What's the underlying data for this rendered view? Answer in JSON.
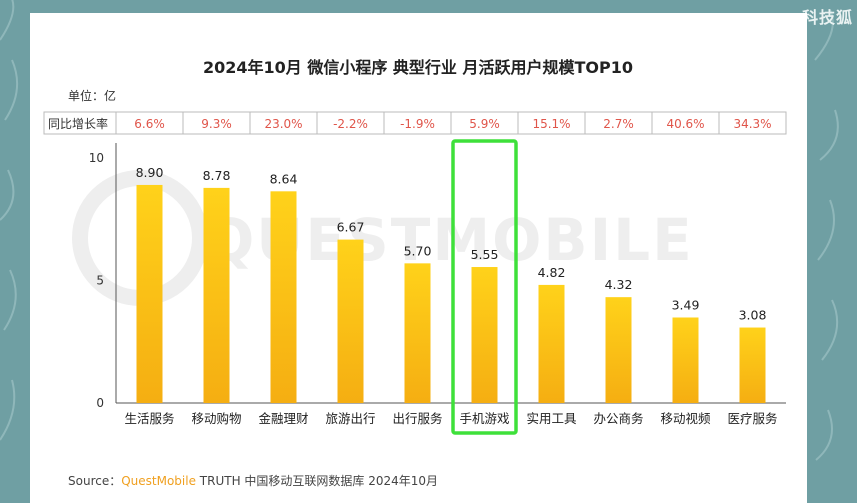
{
  "brand_mark": "科技狐",
  "chart_data": {
    "type": "bar",
    "title": "2024年10月 微信小程序 典型行业 月活跃用户规模TOP10",
    "unit_label": "单位：亿",
    "growth_header": "同比增长率",
    "categories": [
      "生活服务",
      "移动购物",
      "金融理财",
      "旅游出行",
      "出行服务",
      "手机游戏",
      "实用工具",
      "办公商务",
      "移动视频",
      "医疗服务"
    ],
    "values": [
      8.9,
      8.78,
      8.64,
      6.67,
      5.7,
      5.55,
      4.82,
      4.32,
      3.49,
      3.08
    ],
    "value_labels": [
      "8.90",
      "8.78",
      "8.64",
      "6.67",
      "5.70",
      "5.55",
      "4.82",
      "4.32",
      "3.49",
      "3.08"
    ],
    "growth": [
      "6.6%",
      "9.3%",
      "23.0%",
      "-2.2%",
      "-1.9%",
      "5.9%",
      "15.1%",
      "2.7%",
      "40.6%",
      "34.3%"
    ],
    "yticks": [
      "0",
      "5",
      "10"
    ],
    "ylim": [
      0,
      10
    ],
    "highlight_category": "手机游戏",
    "grid": false,
    "source_prefix": "Source：",
    "source_brand": "QuestMobile",
    "source_rest": " TRUTH 中国移动互联网数据库 2024年10月",
    "watermark": "QUESTMOBILE",
    "colors": {
      "bar_top": "#ffd21a",
      "bar_bottom": "#f5ae12",
      "growth_text": "#e0554a",
      "highlight_box": "#3ee03a",
      "background": "#6f9fa3"
    }
  }
}
